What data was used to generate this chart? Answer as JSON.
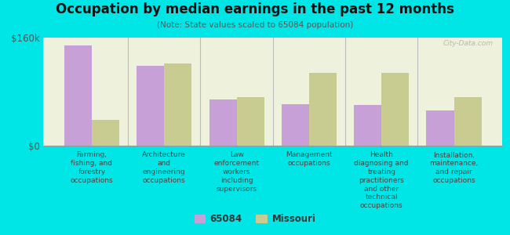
{
  "title": "Occupation by median earnings in the past 12 months",
  "subtitle": "(Note: State values scaled to 65084 population)",
  "background_color": "#00e5e5",
  "plot_bg_color": "#eef2dc",
  "categories": [
    "Farming,\nfishing, and\nforestry\noccupations",
    "Architecture\nand\nengineering\noccupations",
    "Law\nenforcement\nworkers\nincluding\nsupervisors",
    "Management\noccupations",
    "Health\ndiagnosing and\ntreating\npractitioners\nand other\ntechnical\noccupations",
    "Installation,\nmaintenance,\nand repair\noccupations"
  ],
  "values_65084": [
    148000,
    118000,
    68000,
    62000,
    60000,
    52000
  ],
  "values_missouri": [
    38000,
    122000,
    72000,
    108000,
    108000,
    72000
  ],
  "color_65084": "#c8a0d8",
  "color_missouri": "#c8cc90",
  "ylim": [
    0,
    160000
  ],
  "yticks": [
    0,
    160000
  ],
  "ytick_labels": [
    "$0",
    "$160k"
  ],
  "legend_label_65084": "65084",
  "legend_label_missouri": "Missouri",
  "watermark": "City-Data.com"
}
